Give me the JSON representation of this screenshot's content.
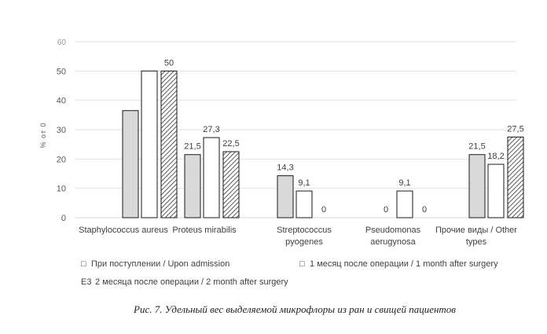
{
  "chart_data": {
    "type": "bar",
    "ylabel": "% от 0",
    "ylim": [
      0,
      60
    ],
    "yticks": [
      0,
      10,
      20,
      30,
      40,
      50,
      60
    ],
    "grid": true,
    "legend_position": "bottom",
    "categories": [
      [
        "Staphylococcus aureus"
      ],
      [
        "Proteus mirabilis"
      ],
      [
        "Streptococcus",
        "pyogenes"
      ],
      [
        "Pseudomonas",
        "aerugynosa"
      ],
      [
        "Прочие виды / Other",
        "types"
      ]
    ],
    "series": [
      {
        "name": "При поступлении / Upon admission",
        "values": [
          36.5,
          21.5,
          14.3,
          0,
          21.5
        ],
        "labels": [
          "",
          "21,5",
          "14,3",
          "0",
          "21,5"
        ],
        "fill": "#d9d9d9"
      },
      {
        "name": "1 месяц после операции / 1 month after surgery",
        "values": [
          50,
          27.3,
          9.1,
          9.1,
          18.2
        ],
        "labels": [
          "",
          "27,3",
          "9,1",
          "9,1",
          "18,2"
        ],
        "fill": "#ffffff"
      },
      {
        "name": "2 месяца после операции / 2 month after surgery",
        "values": [
          50,
          22.5,
          0,
          0,
          27.5
        ],
        "labels": [
          "50",
          "22,5",
          "0",
          "0",
          "27,5"
        ],
        "fill": "hatch"
      }
    ],
    "legend": [
      {
        "symbol": "□",
        "text": "При поступлении / Upon admission"
      },
      {
        "symbol": "□",
        "text": "1 месяц после операции / 1 month after surgery"
      },
      {
        "symbol": "E3",
        "text": "2 месяца после операции / 2 month after surgery"
      }
    ]
  },
  "caption": "Рис. 7. Удельный вес выделяемой микрофлоры из ран и свищей пациентов"
}
